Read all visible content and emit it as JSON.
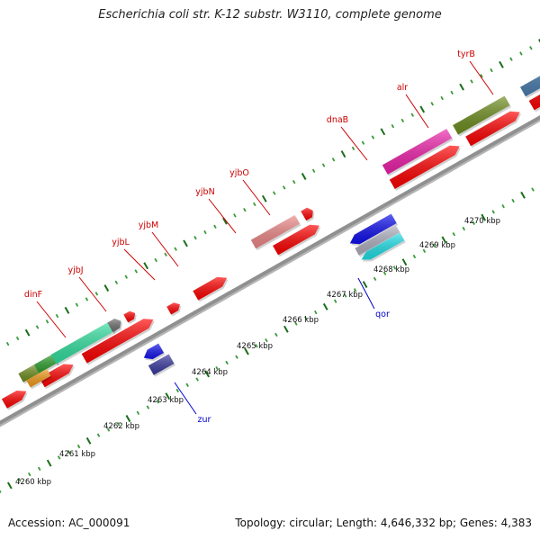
{
  "title": "Escherichia coli str. K-12 substr. W3110, complete genome",
  "footer": {
    "accession": "Accession: AC_000091",
    "stats": "Topology: circular; Length: 4,646,332 bp; Genes: 4,383"
  },
  "colors": {
    "backbone": "#909090",
    "tick_dark": "#1a6e1a",
    "tick_light": "#3a9a3a",
    "label_forward": "#cc0000",
    "label_reverse": "#0000cc",
    "cds": "#ff0000"
  },
  "scale_labels": [
    "4260 kbp",
    "4261 kbp",
    "4262 kbp",
    "4263 kbp",
    "4264 kbp",
    "4265 kbp",
    "4266 kbp",
    "4267 kbp",
    "4268 kbp",
    "4269 kbp",
    "4270 kbp"
  ],
  "forward_gene_labels": [
    "dinF",
    "yjbJ",
    "yjbL",
    "yjbM",
    "yjbN",
    "yjbO",
    "dnaB",
    "alr",
    "tyrB"
  ],
  "reverse_gene_labels": [
    "zur",
    "qor"
  ]
}
